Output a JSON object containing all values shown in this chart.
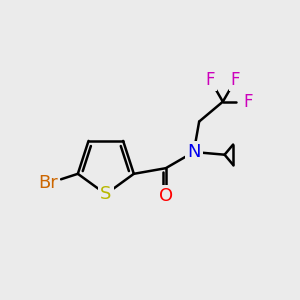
{
  "bg_color": "#ebebeb",
  "bond_color": "#000000",
  "bond_width": 1.8,
  "atoms": {
    "S": {
      "color": "#b8b800",
      "fontsize": 13
    },
    "Br": {
      "color": "#cc6600",
      "fontsize": 13
    },
    "O": {
      "color": "#ff0000",
      "fontsize": 13
    },
    "N": {
      "color": "#0000ee",
      "fontsize": 13
    },
    "F": {
      "color": "#cc00bb",
      "fontsize": 12
    }
  },
  "figsize": [
    3.0,
    3.0
  ],
  "dpi": 100
}
